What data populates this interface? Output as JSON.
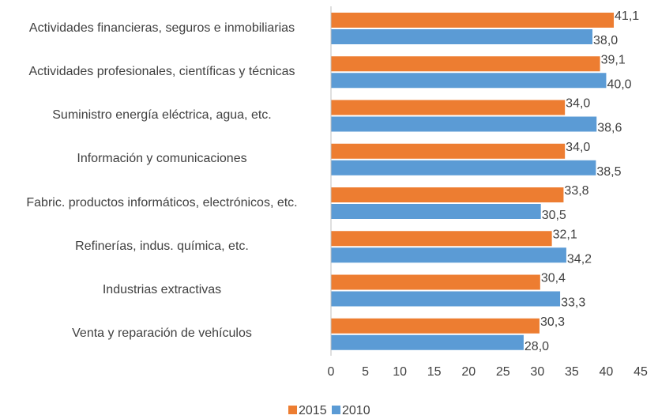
{
  "chart_data": {
    "type": "barh",
    "categories": [
      "Actividades financieras, seguros e inmobiliarias",
      "Actividades profesionales, científicas y técnicas",
      "Suministro energía eléctrica, agua, etc.",
      "Información y comunicaciones",
      "Fabric. productos informáticos, electrónicos, etc.",
      "Refinerías, indus. química, etc.",
      "Industrias extractivas",
      "Venta y reparación de vehículos"
    ],
    "series": [
      {
        "name": "2015",
        "color": "#ed7d31",
        "values": [
          41.1,
          39.1,
          34.0,
          34.0,
          33.8,
          32.1,
          30.4,
          30.3
        ],
        "value_labels": [
          "41,1",
          "39,1",
          "34,0",
          "34,0",
          "33,8",
          "32,1",
          "30,4",
          "30,3"
        ]
      },
      {
        "name": "2010",
        "color": "#5b9bd5",
        "values": [
          38.0,
          40.0,
          38.6,
          38.5,
          30.5,
          34.2,
          33.3,
          28.0
        ],
        "value_labels": [
          "38,0",
          "40,0",
          "38,6",
          "38,5",
          "30,5",
          "34,2",
          "33,3",
          "28,0"
        ]
      }
    ],
    "xlim": [
      0,
      45
    ],
    "xticks": [
      0,
      5,
      10,
      15,
      20,
      25,
      30,
      35,
      40,
      45
    ],
    "grid": false,
    "legend": "bottom"
  }
}
